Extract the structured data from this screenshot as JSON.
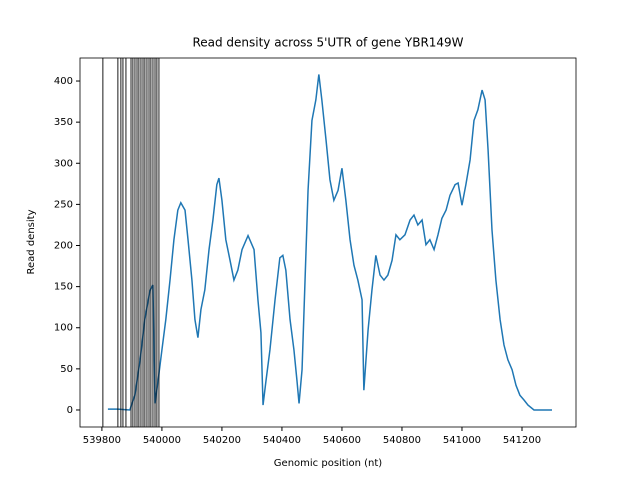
{
  "chart_data": {
    "type": "line",
    "title": "Read density across 5'UTR of gene YBR149W",
    "xlabel": "Genomic position (nt)",
    "ylabel": "Read density",
    "x": [
      539820,
      539853,
      539893,
      539910,
      539927,
      539943,
      539960,
      539970,
      539977,
      539987,
      540000,
      540013,
      540027,
      540040,
      540053,
      540063,
      540077,
      540087,
      540100,
      540110,
      540120,
      540130,
      540143,
      540157,
      540170,
      540183,
      540190,
      540200,
      540213,
      540227,
      540240,
      540253,
      540267,
      540287,
      540307,
      540320,
      540330,
      540337,
      540347,
      540360,
      540377,
      540393,
      540403,
      540413,
      540427,
      540440,
      540450,
      540457,
      540467,
      540477,
      540487,
      540500,
      540513,
      540523,
      540533,
      540547,
      540560,
      540573,
      540587,
      540600,
      540613,
      540627,
      540640,
      540653,
      540667,
      540673,
      540687,
      540700,
      540713,
      540727,
      540740,
      540753,
      540767,
      540780,
      540793,
      540810,
      540827,
      540840,
      540853,
      540867,
      540880,
      540893,
      540907,
      540920,
      540933,
      540947,
      540960,
      540977,
      540987,
      541000,
      541013,
      541027,
      541040,
      541053,
      541067,
      541077,
      541087,
      541100,
      541113,
      541127,
      541140,
      541153,
      541167,
      541180,
      541193,
      541207,
      541220,
      541240,
      541300
    ],
    "series": [
      {
        "name": "Read density",
        "color": "#1f77b4",
        "values": [
          1,
          1,
          0,
          18,
          60,
          110,
          145,
          152,
          8,
          35,
          73,
          110,
          158,
          207,
          243,
          252,
          243,
          207,
          158,
          110,
          88,
          122,
          146,
          195,
          231,
          274,
          282,
          255,
          207,
          182,
          158,
          170,
          195,
          212,
          195,
          134,
          94,
          6,
          36,
          73,
          134,
          185,
          188,
          170,
          110,
          73,
          36,
          8,
          49,
          158,
          267,
          352,
          377,
          408,
          377,
          328,
          280,
          255,
          267,
          294,
          255,
          207,
          176,
          158,
          134,
          24,
          97,
          146,
          188,
          164,
          158,
          164,
          182,
          213,
          207,
          213,
          231,
          237,
          225,
          231,
          201,
          207,
          195,
          213,
          233,
          243,
          261,
          274,
          276,
          249,
          274,
          304,
          352,
          365,
          389,
          377,
          316,
          219,
          158,
          110,
          79,
          61,
          49,
          30,
          18,
          12,
          6,
          0,
          0
        ]
      }
    ],
    "vlines": [
      539803,
      539853,
      539863,
      539870,
      539880,
      539897,
      539903,
      539910,
      539917,
      539923,
      539930,
      539937,
      539943,
      539950,
      539957,
      539963,
      539970,
      539977,
      539983,
      539990
    ],
    "vline_color": "#000000",
    "xlim": [
      539727,
      541380
    ],
    "ylim": [
      -20.7,
      428
    ],
    "xticks": [
      539800,
      540000,
      540200,
      540400,
      540600,
      540800,
      541000,
      541200
    ],
    "yticks": [
      0,
      50,
      100,
      150,
      200,
      250,
      300,
      350,
      400
    ]
  }
}
